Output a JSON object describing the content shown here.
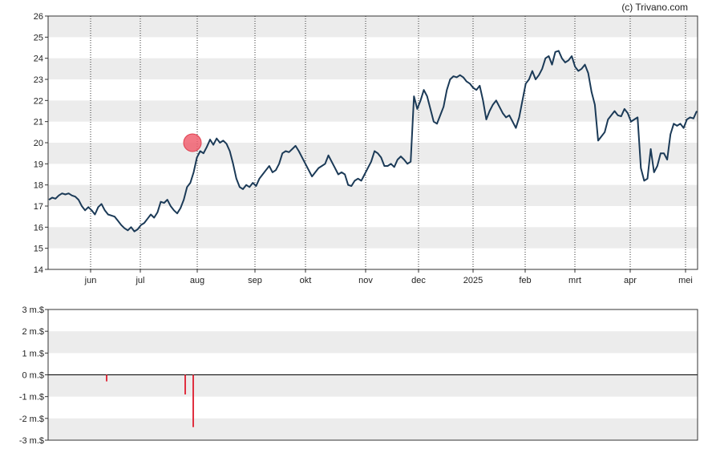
{
  "copyright": "(c) Trivano.com",
  "colors": {
    "price_line": "#1b3a57",
    "volume_bar": "#e03040",
    "band": "#ececec",
    "marker": "#f06070"
  },
  "chart_data": [
    {
      "type": "line",
      "title": "",
      "ylim": [
        14,
        26
      ],
      "yticks": [
        14,
        15,
        16,
        17,
        18,
        19,
        20,
        21,
        22,
        23,
        24,
        25,
        26
      ],
      "xlabels": [
        "jun",
        "jul",
        "aug",
        "sep",
        "okt",
        "nov",
        "dec",
        "2025",
        "feb",
        "mrt",
        "apr",
        "mei"
      ],
      "grid": "vertical dotted lines at month ticks, alternating horizontal bands",
      "highlight_point": {
        "x": "aug",
        "y": 20.0
      },
      "series": [
        {
          "values": [
            17.3,
            17.4,
            17.35,
            17.5,
            17.6,
            17.55,
            17.6,
            17.5,
            17.45,
            17.3,
            17.0,
            16.8,
            16.95,
            16.8,
            16.6,
            16.95,
            17.1,
            16.8,
            16.6,
            16.55,
            16.5,
            16.3,
            16.1,
            15.95,
            15.85,
            16.0,
            15.8,
            15.9,
            16.1,
            16.2,
            16.4,
            16.6,
            16.45,
            16.7,
            17.2,
            17.15,
            17.3,
            17.0,
            16.8,
            16.65,
            16.9,
            17.3,
            17.9,
            18.1,
            18.6,
            19.3,
            19.6,
            19.5,
            19.8,
            20.15,
            19.9,
            20.2,
            20.0,
            20.1,
            19.95,
            19.6,
            19.0,
            18.3,
            17.9,
            17.8,
            18.0,
            17.9,
            18.1,
            17.95,
            18.3,
            18.5,
            18.7,
            18.9,
            18.6,
            18.7,
            19.0,
            19.5,
            19.6,
            19.55,
            19.7,
            19.85,
            19.6,
            19.3,
            19.0,
            18.7,
            18.4,
            18.6,
            18.8,
            18.9,
            19.0,
            19.4,
            19.1,
            18.8,
            18.5,
            18.6,
            18.5,
            18.0,
            17.95,
            18.2,
            18.3,
            18.2,
            18.5,
            18.8,
            19.1,
            19.6,
            19.5,
            19.3,
            18.9,
            18.9,
            19.0,
            18.85,
            19.2,
            19.35,
            19.2,
            19.0,
            19.1,
            22.2,
            21.6,
            22.0,
            22.5,
            22.2,
            21.6,
            21.0,
            20.9,
            21.3,
            21.7,
            22.5,
            23.0,
            23.15,
            23.1,
            23.2,
            23.1,
            22.9,
            22.8,
            22.6,
            22.5,
            22.7,
            22.0,
            21.1,
            21.5,
            21.8,
            22.0,
            21.7,
            21.4,
            21.2,
            21.3,
            21.0,
            20.7,
            21.2,
            22.0,
            22.8,
            23.0,
            23.4,
            23.0,
            23.2,
            23.5,
            24.0,
            24.1,
            23.7,
            24.3,
            24.35,
            24.0,
            23.8,
            23.9,
            24.1,
            23.6,
            23.4,
            23.5,
            23.7,
            23.3,
            22.4,
            21.8,
            20.1,
            20.3,
            20.5,
            21.1,
            21.3,
            21.5,
            21.3,
            21.25,
            21.6,
            21.4,
            21.0,
            21.1,
            21.2,
            18.8,
            18.2,
            18.3,
            19.7,
            18.6,
            18.9,
            19.5,
            19.5,
            19.2,
            20.4,
            20.9,
            20.8,
            20.9,
            20.7,
            21.1,
            21.2,
            21.15,
            21.5
          ]
        }
      ]
    },
    {
      "type": "bar",
      "title": "",
      "ylim": [
        -3,
        3
      ],
      "yticks": [
        "-3 m.$",
        "-2 m.$",
        "-1 m.$",
        "0 m.$",
        "1 m.$",
        "2 m.$",
        "3 m.$"
      ],
      "unit": "m.$",
      "bars": [
        {
          "x": "jun",
          "value": -0.3
        },
        {
          "x": "aug",
          "value": -0.9
        },
        {
          "x": "aug",
          "value": -2.4
        }
      ]
    }
  ]
}
